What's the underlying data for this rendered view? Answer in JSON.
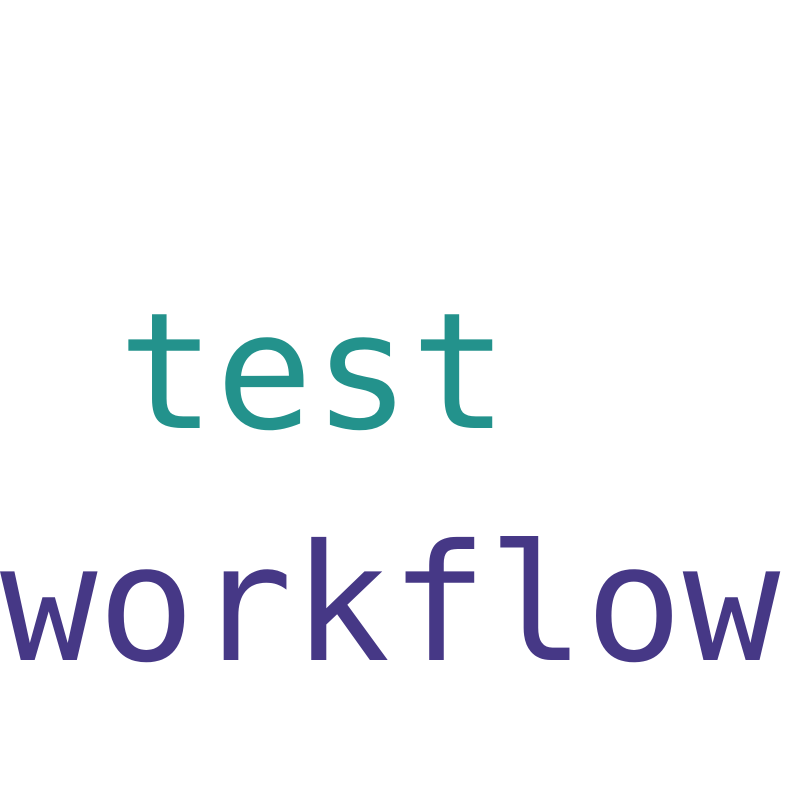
{
  "word_cloud": {
    "words": [
      {
        "text": "test",
        "color": "#23928c"
      },
      {
        "text": "workflow",
        "color": "#463886"
      }
    ]
  }
}
